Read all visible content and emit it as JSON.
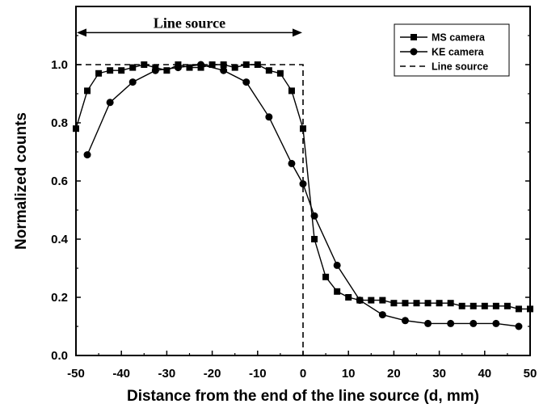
{
  "chart_data": {
    "type": "line",
    "xlabel": "Distance from the end of the line source (d, mm)",
    "ylabel": "Normalized counts",
    "xlim": [
      -50,
      50
    ],
    "ylim": [
      0.0,
      1.2
    ],
    "x_ticks": [
      -50,
      -40,
      -30,
      -20,
      -10,
      0,
      10,
      20,
      30,
      40,
      50
    ],
    "x_tick_labels": [
      "-50",
      "-40",
      "-30",
      "-20",
      "-10",
      "0",
      "10",
      "20",
      "30",
      "40",
      "50"
    ],
    "y_ticks": [
      0.0,
      0.2,
      0.4,
      0.6,
      0.8,
      1.0
    ],
    "y_tick_labels": [
      "0.0",
      "0.2",
      "0.4",
      "0.6",
      "0.8",
      "1.0"
    ],
    "grid": false,
    "legend_position": "top-right",
    "annotation": {
      "text": "Line source",
      "x_range": [
        -50,
        0
      ],
      "y": 1.11
    },
    "series": [
      {
        "name": "MS camera",
        "marker": "square",
        "color": "#000000",
        "x": [
          -50,
          -47.5,
          -45,
          -42.5,
          -40,
          -37.5,
          -35,
          -32.5,
          -30,
          -27.5,
          -25,
          -22.5,
          -20,
          -17.5,
          -15,
          -12.5,
          -10,
          -7.5,
          -5,
          -2.5,
          0,
          2.5,
          5,
          7.5,
          10,
          12.5,
          15,
          17.5,
          20,
          22.5,
          25,
          27.5,
          30,
          32.5,
          35,
          37.5,
          40,
          42.5,
          45,
          47.5,
          50
        ],
        "y": [
          0.78,
          0.91,
          0.97,
          0.98,
          0.98,
          0.99,
          1.0,
          0.99,
          0.98,
          1.0,
          0.99,
          0.99,
          1.0,
          1.0,
          0.99,
          1.0,
          1.0,
          0.98,
          0.97,
          0.91,
          0.78,
          0.4,
          0.27,
          0.22,
          0.2,
          0.19,
          0.19,
          0.19,
          0.18,
          0.18,
          0.18,
          0.18,
          0.18,
          0.18,
          0.17,
          0.17,
          0.17,
          0.17,
          0.17,
          0.16,
          0.16
        ]
      },
      {
        "name": "KE camera",
        "marker": "circle",
        "color": "#000000",
        "x": [
          -47.5,
          -42.5,
          -37.5,
          -32.5,
          -27.5,
          -22.5,
          -17.5,
          -12.5,
          -7.5,
          -2.5,
          0,
          2.5,
          7.5,
          12.5,
          17.5,
          22.5,
          27.5,
          32.5,
          37.5,
          42.5,
          47.5
        ],
        "y": [
          0.69,
          0.87,
          0.94,
          0.98,
          0.99,
          1.0,
          0.98,
          0.94,
          0.82,
          0.66,
          0.59,
          0.48,
          0.31,
          0.19,
          0.14,
          0.12,
          0.11,
          0.11,
          0.11,
          0.11,
          0.1
        ]
      },
      {
        "name": "Line source",
        "marker": "none",
        "dashed": true,
        "color": "#000000",
        "x": [
          -50,
          0,
          0
        ],
        "y": [
          1.0,
          1.0,
          0.0
        ]
      }
    ]
  }
}
